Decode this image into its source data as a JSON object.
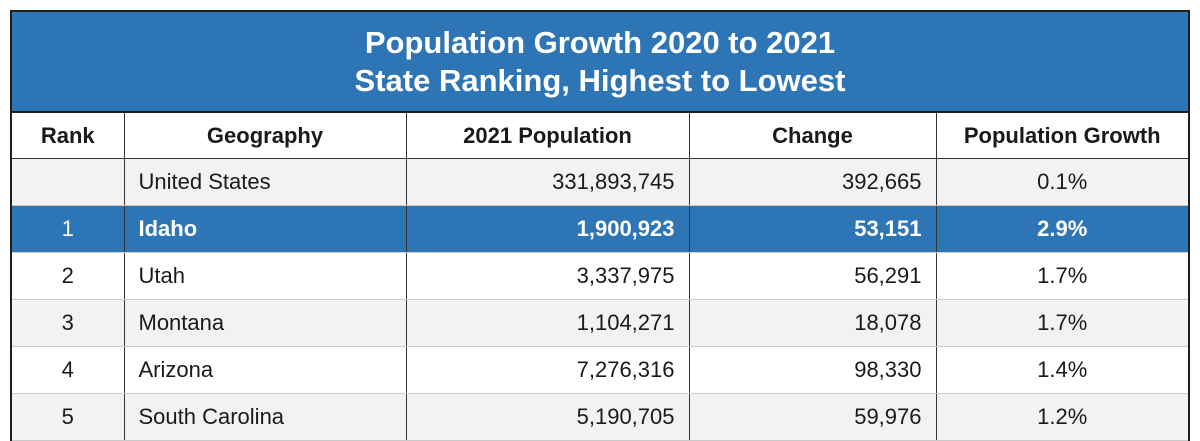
{
  "title": {
    "line1": "Population Growth 2020 to 2021",
    "line2": "State Ranking, Highest to Lowest"
  },
  "columns": {
    "rank": "Rank",
    "geography": "Geography",
    "population": "2021 Population",
    "change": "Change",
    "growth": "Population Growth"
  },
  "rows": [
    {
      "rank": "",
      "geography": "United States",
      "population": "331,893,745",
      "change": "392,665",
      "growth": "0.1%"
    },
    {
      "rank": "1",
      "geography": "Idaho",
      "population": "1,900,923",
      "change": "53,151",
      "growth": "2.9%"
    },
    {
      "rank": "2",
      "geography": "Utah",
      "population": "3,337,975",
      "change": "56,291",
      "growth": "1.7%"
    },
    {
      "rank": "3",
      "geography": "Montana",
      "population": "1,104,271",
      "change": "18,078",
      "growth": "1.7%"
    },
    {
      "rank": "4",
      "geography": "Arizona",
      "population": "7,276,316",
      "change": "98,330",
      "growth": "1.4%"
    },
    {
      "rank": "5",
      "geography": "South Carolina",
      "population": "5,190,705",
      "change": "59,976",
      "growth": "1.2%"
    }
  ],
  "colors": {
    "header_blue": "#2e75b6",
    "row_gray": "#f2f2f2"
  }
}
